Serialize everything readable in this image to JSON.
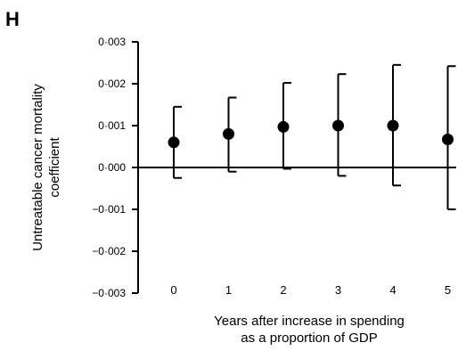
{
  "panel_label": "H",
  "chart_data": {
    "type": "scatter",
    "title": "",
    "xlabel": [
      "Years after increase in spending",
      "as a proportion of GDP"
    ],
    "ylabel": [
      "Untreatable cancer mortality",
      "coefficient"
    ],
    "x_ticks": [
      "0",
      "1",
      "2",
      "3",
      "4",
      "5"
    ],
    "y_ticks": [
      "0·003",
      "0·002",
      "0·001",
      "0·000",
      "−0·001",
      "−0·002",
      "−0·003"
    ],
    "y_tick_values": [
      0.003,
      0.002,
      0.001,
      0.0,
      -0.001,
      -0.002,
      -0.003
    ],
    "ylim": [
      -0.003,
      0.003
    ],
    "grid": false,
    "reference_line": 0.0,
    "points": [
      {
        "x": 0,
        "y": 0.0006,
        "lower": -0.00025,
        "upper": 0.00145
      },
      {
        "x": 1,
        "y": 0.0008,
        "lower": -0.0001,
        "upper": 0.00167
      },
      {
        "x": 2,
        "y": 0.00097,
        "lower": -3e-05,
        "upper": 0.00202
      },
      {
        "x": 3,
        "y": 0.001,
        "lower": -0.0002,
        "upper": 0.00223
      },
      {
        "x": 4,
        "y": 0.001,
        "lower": -0.00043,
        "upper": 0.00245
      },
      {
        "x": 5,
        "y": 0.00067,
        "lower": -0.001,
        "upper": 0.00242
      }
    ],
    "marker_color": "#000000"
  }
}
